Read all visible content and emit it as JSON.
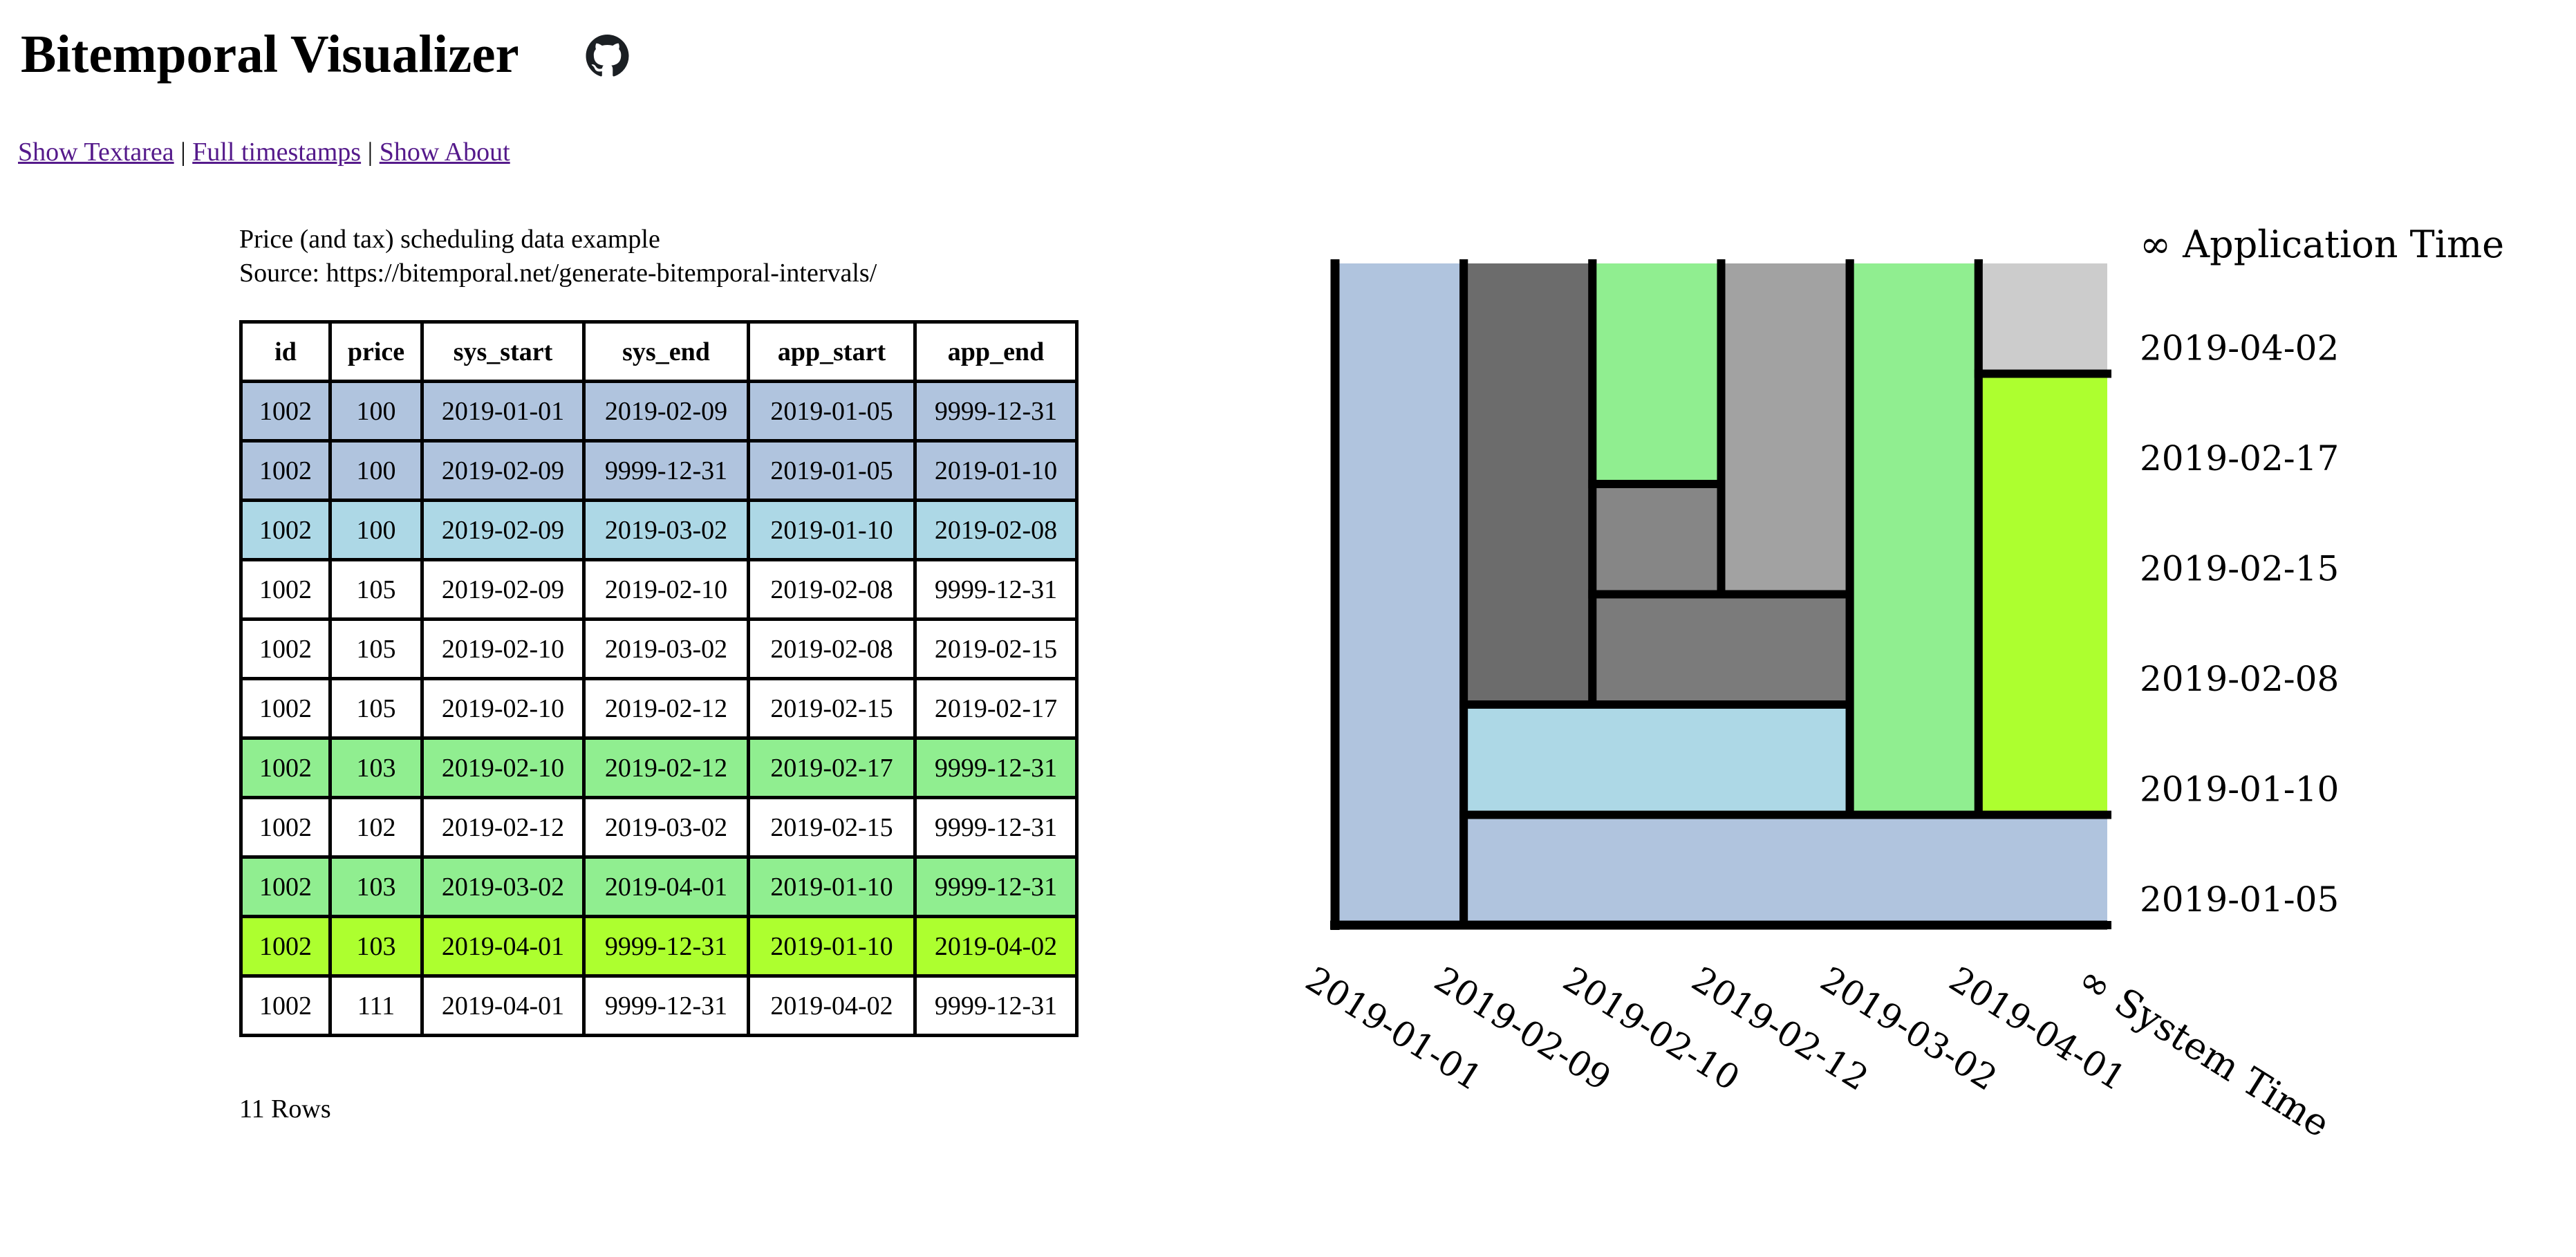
{
  "header": {
    "title": "Bitemporal Visualizer"
  },
  "nav": {
    "separator": "|",
    "links": [
      {
        "label": "Show Textarea"
      },
      {
        "label": "Full timestamps"
      },
      {
        "label": "Show About"
      }
    ]
  },
  "description": {
    "line1": "Price (and tax) scheduling data example",
    "line2": "Source: https://bitemporal.net/generate-bitemporal-intervals/"
  },
  "table": {
    "columns": [
      "id",
      "price",
      "sys_start",
      "sys_end",
      "app_start",
      "app_end"
    ],
    "rows": [
      {
        "bg": "#b0c4de",
        "cells": [
          "1002",
          "100",
          "2019-01-01",
          "2019-02-09",
          "2019-01-05",
          "9999-12-31"
        ]
      },
      {
        "bg": "#b0c4de",
        "cells": [
          "1002",
          "100",
          "2019-02-09",
          "9999-12-31",
          "2019-01-05",
          "2019-01-10"
        ]
      },
      {
        "bg": "#add8e6",
        "cells": [
          "1002",
          "100",
          "2019-02-09",
          "2019-03-02",
          "2019-01-10",
          "2019-02-08"
        ]
      },
      {
        "bg": "#ffffff",
        "cells": [
          "1002",
          "105",
          "2019-02-09",
          "2019-02-10",
          "2019-02-08",
          "9999-12-31"
        ]
      },
      {
        "bg": "#ffffff",
        "cells": [
          "1002",
          "105",
          "2019-02-10",
          "2019-03-02",
          "2019-02-08",
          "2019-02-15"
        ]
      },
      {
        "bg": "#ffffff",
        "cells": [
          "1002",
          "105",
          "2019-02-10",
          "2019-02-12",
          "2019-02-15",
          "2019-02-17"
        ]
      },
      {
        "bg": "#90ee90",
        "cells": [
          "1002",
          "103",
          "2019-02-10",
          "2019-02-12",
          "2019-02-17",
          "9999-12-31"
        ]
      },
      {
        "bg": "#ffffff",
        "cells": [
          "1002",
          "102",
          "2019-02-12",
          "2019-03-02",
          "2019-02-15",
          "9999-12-31"
        ]
      },
      {
        "bg": "#90ee90",
        "cells": [
          "1002",
          "103",
          "2019-03-02",
          "2019-04-01",
          "2019-01-10",
          "9999-12-31"
        ]
      },
      {
        "bg": "#adff2f",
        "cells": [
          "1002",
          "103",
          "2019-04-01",
          "9999-12-31",
          "2019-01-10",
          "2019-04-02"
        ]
      },
      {
        "bg": "#ffffff",
        "cells": [
          "1002",
          "111",
          "2019-04-01",
          "9999-12-31",
          "2019-04-02",
          "9999-12-31"
        ]
      }
    ]
  },
  "row_count_label": "11 Rows",
  "chart_data": {
    "type": "bitemporal-interval-grid",
    "grid": {
      "cols": 6,
      "rows": 6
    },
    "x_axis": {
      "label": "System Time",
      "infinity_label": "∞ System Time",
      "ticks": [
        "2019-01-01",
        "2019-02-09",
        "2019-02-10",
        "2019-02-12",
        "2019-03-02",
        "2019-04-01"
      ]
    },
    "y_axis": {
      "label": "Application Time",
      "infinity_label": "∞ Application Time",
      "ticks": [
        "2019-01-05",
        "2019-01-10",
        "2019-02-08",
        "2019-02-15",
        "2019-02-17",
        "2019-04-02"
      ]
    },
    "stroke_color": "#000000",
    "rects": [
      {
        "sys": [
          0,
          1
        ],
        "app": [
          0,
          6
        ],
        "color": "#b0c4de",
        "open_sides": [
          "top"
        ]
      },
      {
        "sys": [
          1,
          6
        ],
        "app": [
          0,
          1
        ],
        "color": "#b0c4de",
        "open_sides": [
          "right"
        ]
      },
      {
        "sys": [
          1,
          4
        ],
        "app": [
          1,
          2
        ],
        "color": "#add8e6",
        "open_sides": []
      },
      {
        "sys": [
          1,
          2
        ],
        "app": [
          2,
          6
        ],
        "color": "#6c6c6c",
        "open_sides": [
          "top"
        ]
      },
      {
        "sys": [
          2,
          4
        ],
        "app": [
          2,
          3
        ],
        "color": "#7b7b7b",
        "open_sides": []
      },
      {
        "sys": [
          2,
          3
        ],
        "app": [
          3,
          4
        ],
        "color": "#868686",
        "open_sides": []
      },
      {
        "sys": [
          2,
          3
        ],
        "app": [
          4,
          6
        ],
        "color": "#90ee90",
        "open_sides": [
          "top"
        ]
      },
      {
        "sys": [
          3,
          4
        ],
        "app": [
          3,
          6
        ],
        "color": "#a2a2a2",
        "open_sides": [
          "top"
        ]
      },
      {
        "sys": [
          4,
          5
        ],
        "app": [
          1,
          6
        ],
        "color": "#90ee90",
        "open_sides": [
          "top"
        ]
      },
      {
        "sys": [
          5,
          6
        ],
        "app": [
          1,
          5
        ],
        "color": "#adff2f",
        "open_sides": [
          "right"
        ]
      },
      {
        "sys": [
          5,
          6
        ],
        "app": [
          5,
          6
        ],
        "color": "#cccccc",
        "open_sides": [
          "top",
          "right"
        ]
      }
    ]
  }
}
